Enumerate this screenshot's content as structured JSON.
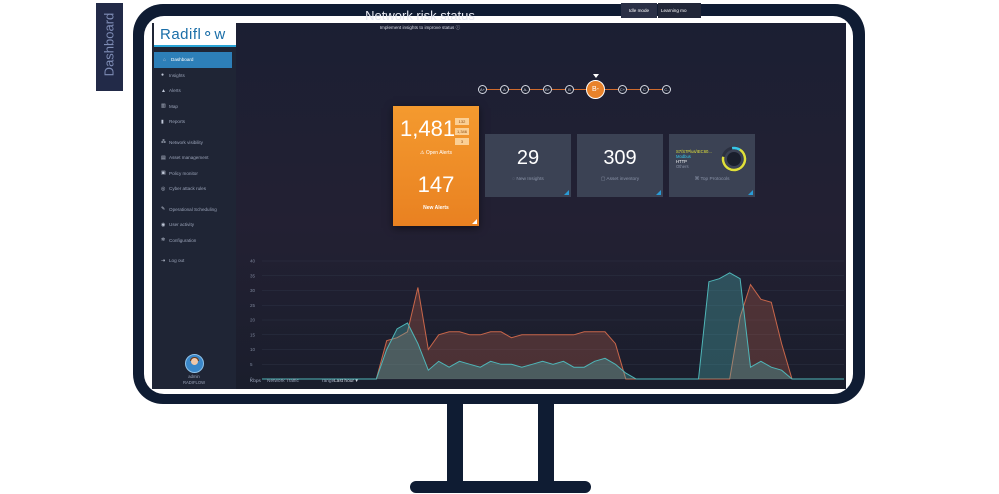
{
  "app": {
    "logo": "Radifl⚬w"
  },
  "sidebar": {
    "items": [
      {
        "label": "Dashboard",
        "icon": "home-icon"
      },
      {
        "label": "Insights",
        "icon": "bulb-icon"
      },
      {
        "label": "Alerts",
        "icon": "warning-icon"
      },
      {
        "label": "Map",
        "icon": "map-icon"
      },
      {
        "label": "Reports",
        "icon": "bar-chart-icon"
      },
      {
        "label": "Network visibility",
        "icon": "network-icon"
      },
      {
        "label": "Asset management",
        "icon": "asset-icon"
      },
      {
        "label": "Policy monitor",
        "icon": "policy-icon"
      },
      {
        "label": "Cyber attack rules",
        "icon": "rules-icon"
      },
      {
        "label": "Operational Scheduling",
        "icon": "wrench-icon"
      },
      {
        "label": "User activity",
        "icon": "user-activity-icon"
      },
      {
        "label": "Configuration",
        "icon": "gear-icon"
      },
      {
        "label": "Log out",
        "icon": "logout-icon"
      }
    ],
    "user": {
      "name": "admin",
      "org": "RADIFLOW"
    }
  },
  "header": {
    "section": "Dashboard",
    "title": "Network risk status",
    "subtitle": "Implement insights to improve status",
    "modes": {
      "idle": "Idle mode",
      "learning": "Learning mo"
    }
  },
  "grades": [
    "A+",
    "A",
    "A-",
    "B+",
    "B",
    "B-",
    "C+",
    "C",
    "C-"
  ],
  "current_grade": "B-",
  "alerts_card": {
    "open_count": "1,481",
    "chips": [
      "132",
      "1,346",
      "3"
    ],
    "open_label": "Open Alerts",
    "new_count": "147",
    "new_label": "New Alerts"
  },
  "insights_card": {
    "value": "29",
    "label": "New Insights"
  },
  "assets_card": {
    "value": "309",
    "label": "Asset inventory"
  },
  "protocols_card": {
    "items": [
      "S7/S7Plus/IEC60...",
      "Modbus",
      "HTTP",
      "Others"
    ],
    "label": "Top Protocols",
    "colors": [
      "#e0e03a",
      "#37c6e8",
      "#ffffff",
      "#8a93a8"
    ]
  },
  "chart": {
    "footer_label": "Network Traffic",
    "range_prefix": "range",
    "range": "Last hour ▾",
    "y_ticks": [
      "40",
      "35",
      "30",
      "25",
      "20",
      "15",
      "10",
      "5",
      "0"
    ]
  },
  "chart_data": {
    "type": "area",
    "ylim": [
      0,
      40
    ],
    "series": [
      {
        "values": [
          0,
          0,
          0,
          0,
          0,
          0,
          0,
          0,
          0,
          0,
          0,
          0,
          13,
          14,
          16,
          31,
          10,
          15,
          16,
          16,
          15,
          15,
          16,
          16,
          14,
          15,
          15,
          15,
          15,
          15,
          15,
          16,
          16,
          16,
          12,
          0,
          0,
          0,
          0,
          0,
          0,
          0,
          0,
          0,
          0,
          0,
          21,
          32,
          27,
          26,
          12,
          0,
          0,
          0,
          0,
          0,
          0
        ],
        "color": "#c8664a"
      },
      {
        "values": [
          0,
          0,
          0,
          0,
          0,
          0,
          0,
          0,
          0,
          0,
          0,
          0,
          10,
          17,
          19,
          12,
          3,
          6,
          4,
          6,
          5,
          4,
          6,
          5,
          5,
          4,
          5,
          6,
          5,
          6,
          4,
          4,
          6,
          7,
          5,
          2,
          0,
          0,
          0,
          0,
          0,
          0,
          0,
          33,
          34,
          36,
          34,
          4,
          6,
          4,
          3,
          0,
          0,
          0,
          0,
          0,
          0
        ],
        "color": "#4fb6b8"
      }
    ]
  }
}
